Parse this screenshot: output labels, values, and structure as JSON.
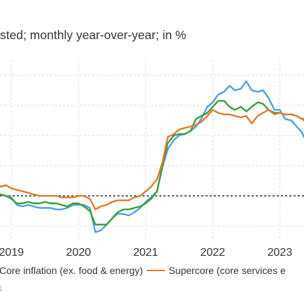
{
  "chart_data": {
    "type": "line",
    "subtitle": "sted; monthly year-over-year; in %",
    "x_tick_labels": [
      "2019",
      "2020",
      "2021",
      "2022",
      "2023"
    ],
    "x_tick_years": [
      2019,
      2020,
      2021,
      2022,
      2023
    ],
    "xlim": [
      2018.83,
      2023.36
    ],
    "ylim": [
      0.5,
      6.5
    ],
    "y_gridlines": [
      1,
      2,
      3,
      4,
      5,
      6
    ],
    "reference_line": 2,
    "grid": true,
    "legend_position": "bottom",
    "series": [
      {
        "name": "Core inflation (ex. food & energy)",
        "color": "#4aa3df",
        "x": [
          2018.83,
          2018.92,
          2019.0,
          2019.08,
          2019.17,
          2019.25,
          2019.33,
          2019.42,
          2019.5,
          2019.58,
          2019.67,
          2019.75,
          2019.83,
          2019.92,
          2020.0,
          2020.08,
          2020.17,
          2020.25,
          2020.33,
          2020.42,
          2020.5,
          2020.58,
          2020.67,
          2020.75,
          2020.83,
          2020.92,
          2021.0,
          2021.08,
          2021.17,
          2021.25,
          2021.33,
          2021.42,
          2021.5,
          2021.58,
          2021.67,
          2021.75,
          2021.83,
          2021.92,
          2022.0,
          2022.08,
          2022.17,
          2022.25,
          2022.33,
          2022.42,
          2022.5,
          2022.58,
          2022.67,
          2022.75,
          2022.83,
          2022.92,
          2023.0,
          2023.08,
          2023.17,
          2023.25,
          2023.33,
          2023.36
        ],
        "values": [
          2.05,
          2.0,
          1.95,
          1.7,
          1.65,
          1.7,
          1.65,
          1.6,
          1.6,
          1.6,
          1.55,
          1.55,
          1.6,
          1.7,
          1.7,
          1.7,
          1.6,
          0.8,
          0.85,
          1.05,
          1.25,
          1.4,
          1.4,
          1.35,
          1.45,
          1.6,
          1.8,
          1.95,
          2.15,
          2.95,
          3.55,
          3.85,
          4.0,
          4.05,
          4.15,
          4.3,
          4.55,
          4.95,
          5.1,
          5.35,
          5.45,
          5.65,
          5.5,
          5.55,
          5.8,
          5.5,
          5.45,
          5.5,
          5.25,
          4.85,
          4.85,
          4.55,
          4.5,
          4.3,
          4.1,
          3.95
        ]
      },
      {
        "name": "",
        "color": "#3a9e3a",
        "x": [
          2018.83,
          2018.92,
          2019.0,
          2019.08,
          2019.17,
          2019.25,
          2019.33,
          2019.42,
          2019.5,
          2019.58,
          2019.67,
          2019.75,
          2019.83,
          2019.92,
          2020.0,
          2020.08,
          2020.17,
          2020.25,
          2020.33,
          2020.42,
          2020.5,
          2020.58,
          2020.67,
          2020.75,
          2020.83,
          2020.92,
          2021.0,
          2021.08,
          2021.17,
          2021.25,
          2021.33,
          2021.42,
          2021.5,
          2021.58,
          2021.67,
          2021.75,
          2021.83,
          2021.92,
          2022.0,
          2022.08,
          2022.17,
          2022.25,
          2022.33,
          2022.42,
          2022.5,
          2022.58,
          2022.67,
          2022.75,
          2022.83,
          2022.92,
          2023.0,
          2023.08,
          2023.17,
          2023.25,
          2023.33,
          2023.36
        ],
        "values": [
          2.05,
          2.0,
          1.9,
          1.75,
          1.75,
          1.8,
          1.75,
          1.75,
          1.8,
          1.75,
          1.75,
          1.7,
          1.65,
          1.75,
          1.75,
          1.65,
          1.5,
          1.05,
          1.05,
          1.05,
          1.25,
          1.45,
          1.55,
          1.55,
          1.6,
          1.65,
          1.75,
          1.9,
          2.15,
          3.0,
          3.75,
          4.0,
          4.05,
          4.05,
          4.15,
          4.55,
          4.65,
          4.75,
          4.95,
          5.15,
          5.15,
          4.95,
          4.85,
          4.95,
          4.8,
          4.95,
          5.1,
          5.05,
          4.85,
          4.75,
          4.75,
          4.7,
          4.7,
          4.65,
          4.55,
          4.55
        ]
      },
      {
        "name": "Supercore (core services e",
        "color": "#e07b2a",
        "x": [
          2018.83,
          2018.92,
          2019.0,
          2019.08,
          2019.17,
          2019.25,
          2019.33,
          2019.42,
          2019.5,
          2019.58,
          2019.67,
          2019.75,
          2019.83,
          2019.92,
          2020.0,
          2020.08,
          2020.17,
          2020.25,
          2020.33,
          2020.42,
          2020.5,
          2020.58,
          2020.67,
          2020.75,
          2020.83,
          2020.92,
          2021.0,
          2021.08,
          2021.17,
          2021.25,
          2021.33,
          2021.42,
          2021.5,
          2021.58,
          2021.67,
          2021.75,
          2021.83,
          2021.92,
          2022.0,
          2022.08,
          2022.17,
          2022.25,
          2022.33,
          2022.42,
          2022.5,
          2022.58,
          2022.67,
          2022.75,
          2022.83,
          2022.92,
          2023.0,
          2023.08,
          2023.17,
          2023.25,
          2023.33,
          2023.36
        ],
        "values": [
          2.3,
          2.35,
          2.25,
          2.2,
          2.15,
          2.1,
          2.05,
          2.0,
          2.0,
          2.0,
          2.0,
          1.95,
          1.95,
          1.95,
          2.0,
          2.0,
          1.9,
          1.55,
          1.65,
          1.7,
          1.8,
          1.85,
          1.85,
          1.85,
          1.95,
          2.0,
          2.15,
          2.3,
          2.55,
          3.1,
          3.95,
          4.05,
          4.2,
          4.25,
          4.3,
          4.35,
          4.45,
          4.65,
          4.85,
          4.75,
          4.7,
          4.7,
          4.65,
          4.6,
          4.65,
          4.4,
          4.65,
          4.75,
          4.85,
          4.7,
          4.75,
          4.7,
          4.7,
          4.65,
          4.55,
          4.5
        ]
      }
    ]
  },
  "legend": {
    "items": [
      {
        "label": "Core inflation (ex. food & energy)",
        "color": "#4aa3df"
      },
      {
        "label": "Supercore (core services e",
        "color": "#e07b2a"
      }
    ]
  },
  "source": "s"
}
